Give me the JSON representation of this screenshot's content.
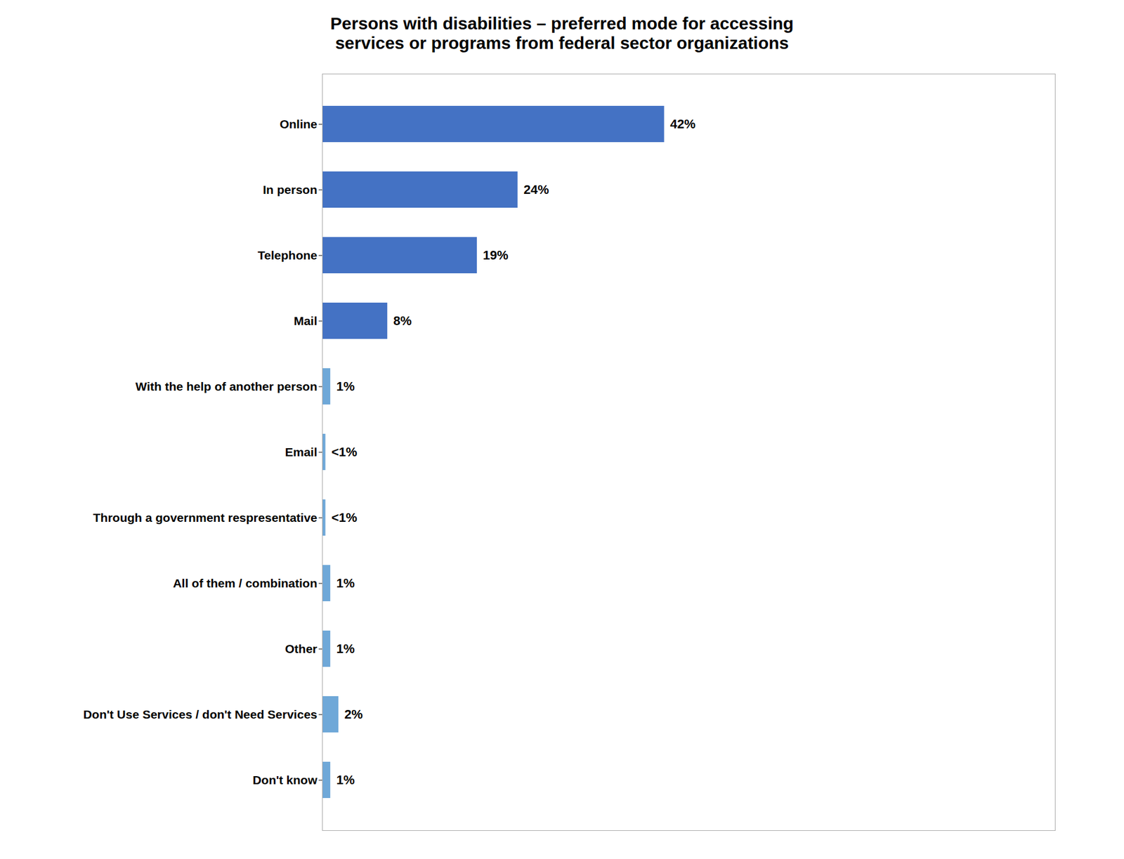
{
  "chart_data": {
    "type": "bar",
    "orientation": "horizontal",
    "title": "Persons with disabilities – preferred mode for accessing\nservices or programs from federal sector organizations",
    "categories": [
      "Online",
      "In person",
      "Telephone",
      "Mail",
      "With the help of another person",
      "Email",
      "Through a government respresentative",
      "All of them / combination",
      "Other",
      "Don't Use Services / don't Need Services",
      "Don't know"
    ],
    "values": [
      42,
      24,
      19,
      8,
      1,
      0.4,
      0.4,
      1,
      1,
      2,
      1
    ],
    "value_labels": [
      "42%",
      "24%",
      "19%",
      "8%",
      "1%",
      "<1%",
      "<1%",
      "1%",
      "1%",
      "2%",
      "1%"
    ],
    "colors": [
      "#4472C4",
      "#4472C4",
      "#4472C4",
      "#4472C4",
      "#6FA8D8",
      "#6FA8D8",
      "#6FA8D8",
      "#6FA8D8",
      "#6FA8D8",
      "#6FA8D8",
      "#6FA8D8"
    ],
    "xlim": [
      0,
      90
    ],
    "data_labels": true,
    "tick_labels": "y",
    "grid": false
  }
}
